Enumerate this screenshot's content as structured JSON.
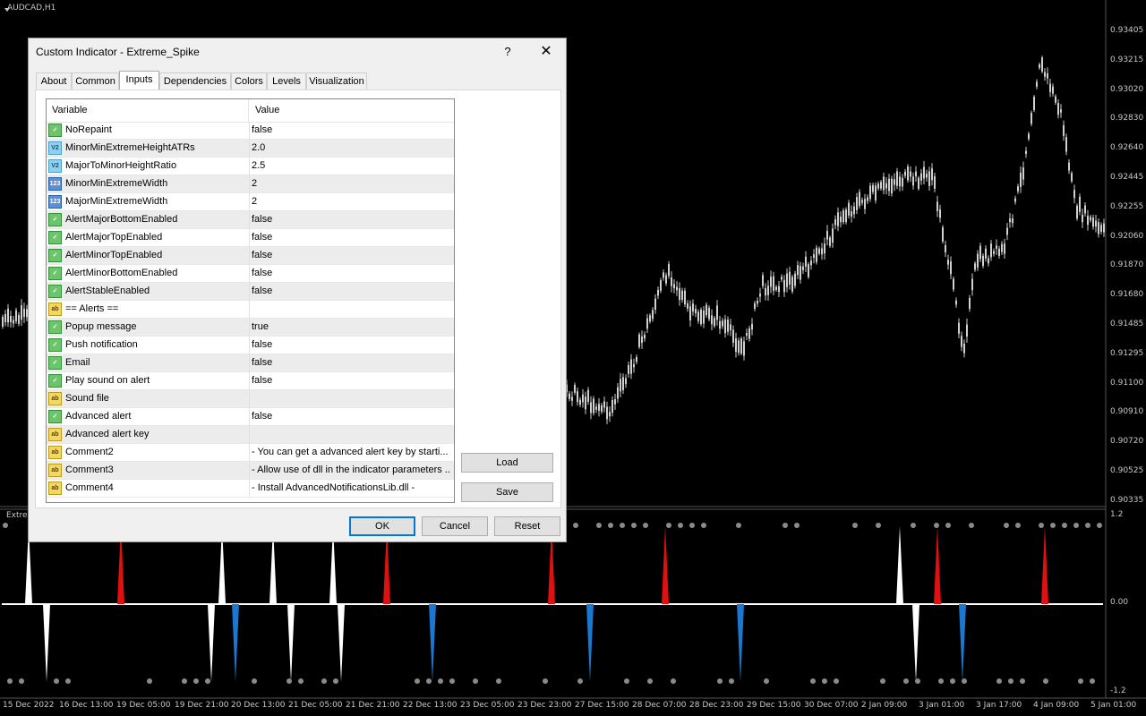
{
  "chart": {
    "symbol_label": "AUDCAD,H1",
    "indicator_label": "Extrem",
    "price_ticks": [
      "0.93405",
      "0.93215",
      "0.93020",
      "0.92830",
      "0.92640",
      "0.92445",
      "0.92255",
      "0.92060",
      "0.91870",
      "0.91680",
      "0.91485",
      "0.91295",
      "0.91100",
      "0.90910",
      "0.90720",
      "0.90525",
      "0.90335"
    ],
    "indicator_ticks": [
      "1.2",
      "0.00",
      "-1.2"
    ],
    "date_ticks": [
      "15 Dec 2022",
      "16 Dec 13:00",
      "19 Dec 05:00",
      "19 Dec 21:00",
      "20 Dec 13:00",
      "21 Dec 05:00",
      "21 Dec 21:00",
      "22 Dec 13:00",
      "23 Dec 05:00",
      "23 Dec 23:00",
      "27 Dec 15:00",
      "28 Dec 07:00",
      "28 Dec 23:00",
      "29 Dec 15:00",
      "30 Dec 07:00",
      "2 Jan 09:00",
      "3 Jan 01:00",
      "3 Jan 17:00",
      "4 Jan 09:00",
      "5 Jan 01:00"
    ],
    "colors": {
      "background": "#000000",
      "candles": "#d0d0d0",
      "spike_major_top": "#e01010",
      "spike_major_bottom": "#1a78d0",
      "line": "#ffffff",
      "dots": "#8a8a8a"
    }
  },
  "dialog": {
    "title": "Custom Indicator - Extreme_Spike",
    "help_label": "?",
    "close_label": "✕",
    "tabs": [
      {
        "label": "About",
        "active": false
      },
      {
        "label": "Common",
        "active": false
      },
      {
        "label": "Inputs",
        "active": true
      },
      {
        "label": "Dependencies",
        "active": false
      },
      {
        "label": "Colors",
        "active": false
      },
      {
        "label": "Levels",
        "active": false
      },
      {
        "label": "Visualization",
        "active": false
      }
    ],
    "grid": {
      "header_variable": "Variable",
      "header_value": "Value",
      "rows": [
        {
          "icon": "bool-icon",
          "var": "NoRepaint",
          "value": "false"
        },
        {
          "icon": "double-icon",
          "var": "MinorMinExtremeHeightATRs",
          "value": "2.0"
        },
        {
          "icon": "double-icon",
          "var": "MajorToMinorHeightRatio",
          "value": "2.5"
        },
        {
          "icon": "int-icon",
          "var": "MinorMinExtremeWidth",
          "value": "2"
        },
        {
          "icon": "int-icon",
          "var": "MajorMinExtremeWidth",
          "value": "2"
        },
        {
          "icon": "bool-icon",
          "var": "AlertMajorBottomEnabled",
          "value": "false"
        },
        {
          "icon": "bool-icon",
          "var": "AlertMajorTopEnabled",
          "value": "false"
        },
        {
          "icon": "bool-icon",
          "var": "AlertMinorTopEnabled",
          "value": "false"
        },
        {
          "icon": "bool-icon",
          "var": "AlertMinorBottomEnabled",
          "value": "false"
        },
        {
          "icon": "bool-icon",
          "var": "AlertStableEnabled",
          "value": "false"
        },
        {
          "icon": "string-icon",
          "var": "== Alerts ==",
          "value": ""
        },
        {
          "icon": "bool-icon",
          "var": "Popup message",
          "value": "true"
        },
        {
          "icon": "bool-icon",
          "var": "Push notification",
          "value": "false"
        },
        {
          "icon": "bool-icon",
          "var": "Email",
          "value": "false"
        },
        {
          "icon": "bool-icon",
          "var": "Play sound on alert",
          "value": "false"
        },
        {
          "icon": "string-icon",
          "var": "Sound file",
          "value": ""
        },
        {
          "icon": "bool-icon",
          "var": "Advanced alert",
          "value": "false"
        },
        {
          "icon": "string-icon",
          "var": "Advanced alert key",
          "value": ""
        },
        {
          "icon": "string-icon",
          "var": "Comment2",
          "value": "- You can get a advanced alert key by starti..."
        },
        {
          "icon": "string-icon",
          "var": "Comment3",
          "value": "- Allow use of dll in the indicator parameters ..."
        },
        {
          "icon": "string-icon",
          "var": "Comment4",
          "value": "- Install AdvancedNotificationsLib.dll -"
        }
      ]
    },
    "buttons": {
      "load": "Load",
      "save": "Save",
      "ok": "OK",
      "cancel": "Cancel",
      "reset": "Reset"
    }
  }
}
